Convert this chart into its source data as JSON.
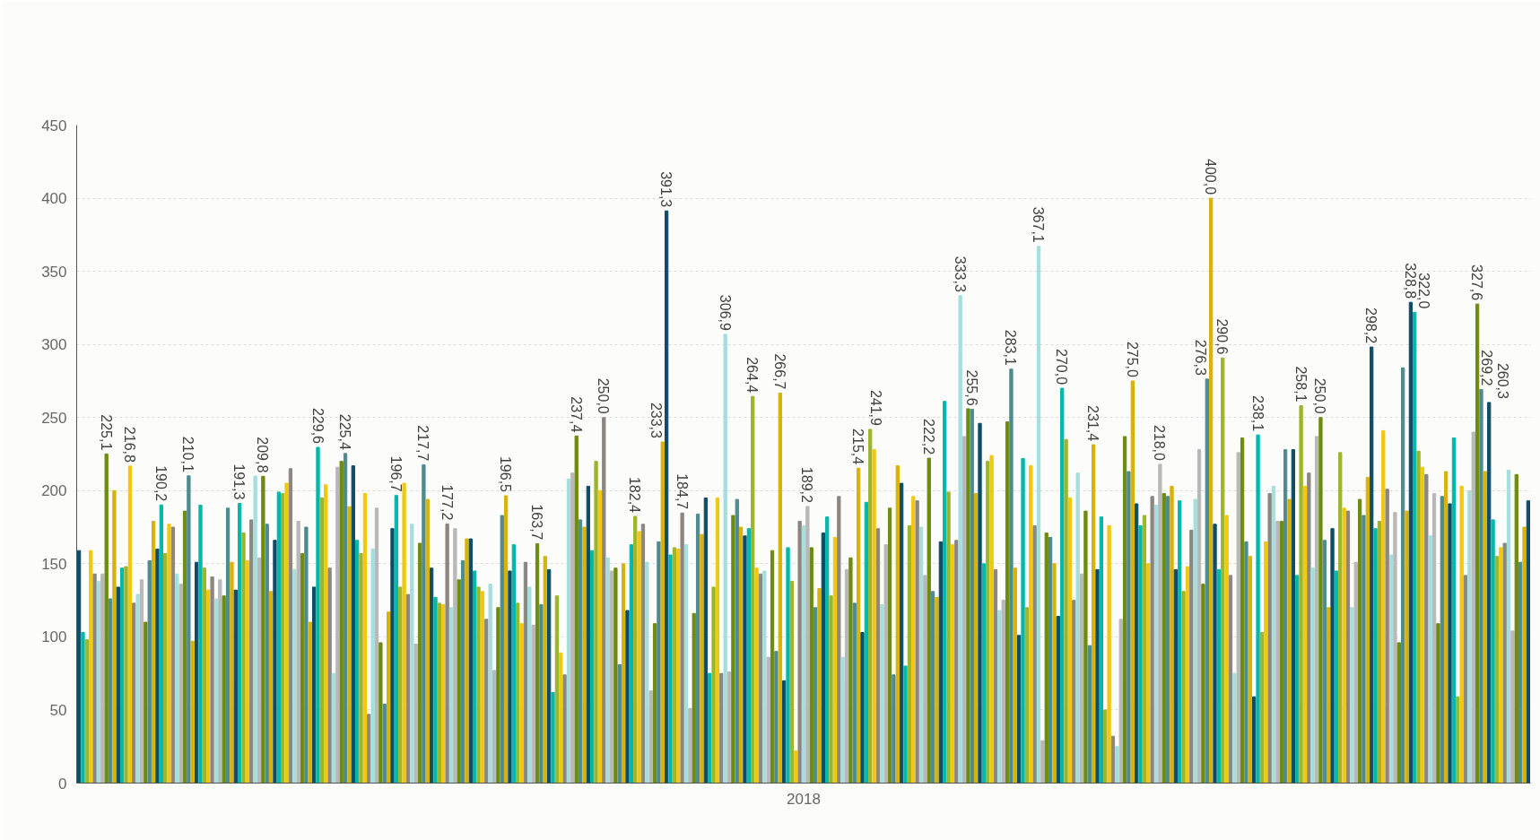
{
  "chart_data": {
    "type": "bar",
    "categories": [
      "2018"
    ],
    "ylim": [
      0,
      450
    ],
    "yticks": [
      0,
      50,
      100,
      150,
      200,
      250,
      300,
      350,
      400,
      450
    ],
    "grid": "y",
    "series": [
      {
        "color": "#0d4d68",
        "values": [
          159
        ]
      },
      {
        "color": "#01b8aa",
        "values": [
          103
        ]
      },
      {
        "color": "#9cb52a",
        "values": [
          98
        ]
      },
      {
        "color": "#f2c80f",
        "values": [
          159
        ]
      },
      {
        "color": "#8c8680",
        "values": [
          143
        ]
      },
      {
        "color": "#a6dede",
        "values": [
          138
        ]
      },
      {
        "color": "#b8b8b8",
        "values": [
          143
        ]
      },
      {
        "color": "#6d8b0f",
        "values": [
          225.1
        ],
        "value_labels": [
          "225,1"
        ]
      },
      {
        "color": "#4e8b8f",
        "values": [
          126
        ]
      },
      {
        "color": "#d9b208",
        "values": [
          200
        ]
      },
      {
        "color": "#0d4d68",
        "values": [
          134
        ]
      },
      {
        "color": "#01b8aa",
        "values": [
          147
        ]
      },
      {
        "color": "#9cb52a",
        "values": [
          148
        ]
      },
      {
        "color": "#f2c80f",
        "values": [
          216.8
        ],
        "value_labels": [
          "216,8"
        ]
      },
      {
        "color": "#8c8680",
        "values": [
          123
        ]
      },
      {
        "color": "#a6dede",
        "values": [
          129
        ]
      },
      {
        "color": "#b8b8b8",
        "values": [
          139
        ]
      },
      {
        "color": "#6d8b0f",
        "values": [
          110
        ]
      },
      {
        "color": "#4e8b8f",
        "values": [
          152
        ]
      },
      {
        "color": "#d9b208",
        "values": [
          179
        ]
      },
      {
        "color": "#0d4d68",
        "values": [
          160
        ]
      },
      {
        "color": "#01b8aa",
        "values": [
          190.2
        ],
        "value_labels": [
          "190,2"
        ]
      },
      {
        "color": "#9cb52a",
        "values": [
          157
        ]
      },
      {
        "color": "#f2c80f",
        "values": [
          177
        ]
      },
      {
        "color": "#8c8680",
        "values": [
          175
        ]
      },
      {
        "color": "#a6dede",
        "values": [
          143
        ]
      },
      {
        "color": "#b8b8b8",
        "values": [
          136
        ]
      },
      {
        "color": "#6d8b0f",
        "values": [
          186
        ]
      },
      {
        "color": "#4e8b8f",
        "values": [
          210.1
        ],
        "value_labels": [
          "210,1"
        ]
      },
      {
        "color": "#d9b208",
        "values": [
          97
        ]
      },
      {
        "color": "#0d4d68",
        "values": [
          151
        ]
      },
      {
        "color": "#01b8aa",
        "values": [
          190
        ]
      },
      {
        "color": "#9cb52a",
        "values": [
          147
        ]
      },
      {
        "color": "#f2c80f",
        "values": [
          132
        ]
      },
      {
        "color": "#8c8680",
        "values": [
          141
        ]
      },
      {
        "color": "#a6dede",
        "values": [
          126
        ]
      },
      {
        "color": "#b8b8b8",
        "values": [
          139
        ]
      },
      {
        "color": "#6d8b0f",
        "values": [
          128
        ]
      },
      {
        "color": "#4e8b8f",
        "values": [
          188
        ]
      },
      {
        "color": "#d9b208",
        "values": [
          151
        ]
      },
      {
        "color": "#0d4d68",
        "values": [
          132
        ]
      },
      {
        "color": "#01b8aa",
        "values": [
          191.3
        ],
        "value_labels": [
          "191,3"
        ]
      },
      {
        "color": "#9cb52a",
        "values": [
          171
        ]
      },
      {
        "color": "#f2c80f",
        "values": [
          152
        ]
      },
      {
        "color": "#8c8680",
        "values": [
          180
        ]
      },
      {
        "color": "#a6dede",
        "values": [
          210
        ]
      },
      {
        "color": "#b8b8b8",
        "values": [
          154
        ]
      },
      {
        "color": "#6d8b0f",
        "values": [
          209.8
        ],
        "value_labels": [
          "209,8"
        ]
      },
      {
        "color": "#4e8b8f",
        "values": [
          177
        ]
      },
      {
        "color": "#d9b208",
        "values": [
          131
        ]
      },
      {
        "color": "#0d4d68",
        "values": [
          166
        ]
      },
      {
        "color": "#01b8aa",
        "values": [
          199
        ]
      },
      {
        "color": "#9cb52a",
        "values": [
          198
        ]
      },
      {
        "color": "#f2c80f",
        "values": [
          205
        ]
      },
      {
        "color": "#8c8680",
        "values": [
          215
        ]
      },
      {
        "color": "#a6dede",
        "values": [
          146
        ]
      },
      {
        "color": "#b8b8b8",
        "values": [
          179
        ]
      },
      {
        "color": "#6d8b0f",
        "values": [
          157
        ]
      },
      {
        "color": "#4e8b8f",
        "values": [
          175
        ]
      },
      {
        "color": "#d9b208",
        "values": [
          110
        ]
      },
      {
        "color": "#0d4d68",
        "values": [
          134
        ]
      },
      {
        "color": "#01b8aa",
        "values": [
          229.6
        ],
        "value_labels": [
          "229,6"
        ]
      },
      {
        "color": "#9cb52a",
        "values": [
          195
        ]
      },
      {
        "color": "#f2c80f",
        "values": [
          204
        ]
      },
      {
        "color": "#8c8680",
        "values": [
          147
        ]
      },
      {
        "color": "#a6dede",
        "values": [
          75
        ]
      },
      {
        "color": "#b8b8b8",
        "values": [
          216
        ]
      },
      {
        "color": "#6d8b0f",
        "values": [
          220
        ]
      },
      {
        "color": "#4e8b8f",
        "values": [
          225.4
        ],
        "value_labels": [
          "225,4"
        ]
      },
      {
        "color": "#d9b208",
        "values": [
          189
        ]
      },
      {
        "color": "#0d4d68",
        "values": [
          217
        ]
      },
      {
        "color": "#01b8aa",
        "values": [
          166
        ]
      },
      {
        "color": "#9cb52a",
        "values": [
          157
        ]
      },
      {
        "color": "#f2c80f",
        "values": [
          198
        ]
      },
      {
        "color": "#8c8680",
        "values": [
          47
        ]
      },
      {
        "color": "#a6dede",
        "values": [
          160
        ]
      },
      {
        "color": "#b8b8b8",
        "values": [
          188
        ]
      },
      {
        "color": "#6d8b0f",
        "values": [
          96
        ]
      },
      {
        "color": "#4e8b8f",
        "values": [
          54
        ]
      },
      {
        "color": "#d9b208",
        "values": [
          117
        ]
      },
      {
        "color": "#0d4d68",
        "values": [
          174
        ]
      },
      {
        "color": "#01b8aa",
        "values": [
          196.7
        ],
        "value_labels": [
          "196,7"
        ]
      },
      {
        "color": "#9cb52a",
        "values": [
          134
        ]
      },
      {
        "color": "#f2c80f",
        "values": [
          205
        ]
      },
      {
        "color": "#8c8680",
        "values": [
          129
        ]
      },
      {
        "color": "#a6dede",
        "values": [
          177
        ]
      },
      {
        "color": "#b8b8b8",
        "values": [
          95
        ]
      },
      {
        "color": "#6d8b0f",
        "values": [
          164
        ]
      },
      {
        "color": "#4e8b8f",
        "values": [
          217.7
        ],
        "value_labels": [
          "217,7"
        ]
      },
      {
        "color": "#d9b208",
        "values": [
          194
        ]
      },
      {
        "color": "#0d4d68",
        "values": [
          147
        ]
      },
      {
        "color": "#01b8aa",
        "values": [
          127
        ]
      },
      {
        "color": "#9cb52a",
        "values": [
          123
        ]
      },
      {
        "color": "#f2c80f",
        "values": [
          122
        ]
      },
      {
        "color": "#8c8680",
        "values": [
          177.2
        ],
        "value_labels": [
          "177,2"
        ]
      },
      {
        "color": "#a6dede",
        "values": [
          120
        ]
      },
      {
        "color": "#b8b8b8",
        "values": [
          174
        ]
      },
      {
        "color": "#6d8b0f",
        "values": [
          139
        ]
      },
      {
        "color": "#4e8b8f",
        "values": [
          152
        ]
      },
      {
        "color": "#d9b208",
        "values": [
          167
        ]
      },
      {
        "color": "#0d4d68",
        "values": [
          167
        ]
      },
      {
        "color": "#01b8aa",
        "values": [
          145
        ]
      },
      {
        "color": "#9cb52a",
        "values": [
          134
        ]
      },
      {
        "color": "#f2c80f",
        "values": [
          131
        ]
      },
      {
        "color": "#8c8680",
        "values": [
          112
        ]
      },
      {
        "color": "#a6dede",
        "values": [
          136
        ]
      },
      {
        "color": "#b8b8b8",
        "values": [
          77
        ]
      },
      {
        "color": "#6d8b0f",
        "values": [
          120
        ]
      },
      {
        "color": "#4e8b8f",
        "values": [
          183
        ]
      },
      {
        "color": "#d9b208",
        "values": [
          196.5
        ],
        "value_labels": [
          "196,5"
        ]
      },
      {
        "color": "#0d4d68",
        "values": [
          145
        ]
      },
      {
        "color": "#01b8aa",
        "values": [
          163
        ]
      },
      {
        "color": "#9cb52a",
        "values": [
          123
        ]
      },
      {
        "color": "#f2c80f",
        "values": [
          109
        ]
      },
      {
        "color": "#8c8680",
        "values": [
          151
        ]
      },
      {
        "color": "#a6dede",
        "values": [
          134
        ]
      },
      {
        "color": "#b8b8b8",
        "values": [
          108
        ]
      },
      {
        "color": "#6d8b0f",
        "values": [
          163.7
        ],
        "value_labels": [
          "163,7"
        ]
      },
      {
        "color": "#4e8b8f",
        "values": [
          122
        ]
      },
      {
        "color": "#d9b208",
        "values": [
          155
        ]
      },
      {
        "color": "#0d4d68",
        "values": [
          146
        ]
      },
      {
        "color": "#01b8aa",
        "values": [
          62
        ]
      },
      {
        "color": "#9cb52a",
        "values": [
          128
        ]
      },
      {
        "color": "#f2c80f",
        "values": [
          89
        ]
      },
      {
        "color": "#8c8680",
        "values": [
          74
        ]
      },
      {
        "color": "#a6dede",
        "values": [
          208
        ]
      },
      {
        "color": "#b8b8b8",
        "values": [
          212
        ]
      },
      {
        "color": "#6d8b0f",
        "values": [
          237.4
        ],
        "value_labels": [
          "237,4"
        ]
      },
      {
        "color": "#4e8b8f",
        "values": [
          180
        ]
      },
      {
        "color": "#d9b208",
        "values": [
          175
        ]
      },
      {
        "color": "#0d4d68",
        "values": [
          203
        ]
      },
      {
        "color": "#01b8aa",
        "values": [
          159
        ]
      },
      {
        "color": "#9cb52a",
        "values": [
          220
        ]
      },
      {
        "color": "#f2c80f",
        "values": [
          200
        ]
      },
      {
        "color": "#8c8680",
        "values": [
          250.0
        ],
        "value_labels": [
          "250,0"
        ]
      },
      {
        "color": "#a6dede",
        "values": [
          154
        ]
      },
      {
        "color": "#b8b8b8",
        "values": [
          145
        ]
      },
      {
        "color": "#6d8b0f",
        "values": [
          147
        ]
      },
      {
        "color": "#4e8b8f",
        "values": [
          81
        ]
      },
      {
        "color": "#d9b208",
        "values": [
          150
        ]
      },
      {
        "color": "#0d4d68",
        "values": [
          118
        ]
      },
      {
        "color": "#01b8aa",
        "values": [
          163
        ]
      },
      {
        "color": "#9cb52a",
        "values": [
          182.4
        ],
        "value_labels": [
          "182,4"
        ]
      },
      {
        "color": "#f2c80f",
        "values": [
          172
        ]
      },
      {
        "color": "#8c8680",
        "values": [
          177
        ]
      },
      {
        "color": "#a6dede",
        "values": [
          151
        ]
      },
      {
        "color": "#b8b8b8",
        "values": [
          63
        ]
      },
      {
        "color": "#6d8b0f",
        "values": [
          109
        ]
      },
      {
        "color": "#4e8b8f",
        "values": [
          165
        ]
      },
      {
        "color": "#d9b208",
        "values": [
          233.3
        ],
        "value_labels": [
          "233,3"
        ]
      },
      {
        "color": "#0d4d68",
        "values": [
          391.3
        ],
        "value_labels": [
          "391,3"
        ]
      },
      {
        "color": "#01b8aa",
        "values": [
          156
        ]
      },
      {
        "color": "#9cb52a",
        "values": [
          161
        ]
      },
      {
        "color": "#f2c80f",
        "values": [
          160
        ]
      },
      {
        "color": "#8c8680",
        "values": [
          184.7
        ],
        "value_labels": [
          "184,7"
        ]
      },
      {
        "color": "#a6dede",
        "values": [
          163
        ]
      },
      {
        "color": "#b8b8b8",
        "values": [
          51
        ]
      },
      {
        "color": "#6d8b0f",
        "values": [
          116
        ]
      },
      {
        "color": "#4e8b8f",
        "values": [
          184
        ]
      },
      {
        "color": "#d9b208",
        "values": [
          170
        ]
      },
      {
        "color": "#0d4d68",
        "values": [
          195
        ]
      },
      {
        "color": "#01b8aa",
        "values": [
          75
        ]
      },
      {
        "color": "#9cb52a",
        "values": [
          134
        ]
      },
      {
        "color": "#f2c80f",
        "values": [
          195
        ]
      },
      {
        "color": "#8c8680",
        "values": [
          75
        ]
      },
      {
        "color": "#a6dede",
        "values": [
          306.9
        ],
        "value_labels": [
          "306,9"
        ]
      },
      {
        "color": "#b8b8b8",
        "values": [
          76
        ]
      },
      {
        "color": "#6d8b0f",
        "values": [
          183
        ]
      },
      {
        "color": "#4e8b8f",
        "values": [
          194
        ]
      },
      {
        "color": "#d9b208",
        "values": [
          175
        ]
      },
      {
        "color": "#0d4d68",
        "values": [
          169
        ]
      },
      {
        "color": "#01b8aa",
        "values": [
          174
        ]
      },
      {
        "color": "#9cb52a",
        "values": [
          264.4
        ],
        "value_labels": [
          "264,4"
        ]
      },
      {
        "color": "#f2c80f",
        "values": [
          147
        ]
      },
      {
        "color": "#8c8680",
        "values": [
          143
        ]
      },
      {
        "color": "#a6dede",
        "values": [
          145
        ]
      },
      {
        "color": "#b8b8b8",
        "values": [
          86
        ]
      },
      {
        "color": "#6d8b0f",
        "values": [
          159
        ]
      },
      {
        "color": "#4e8b8f",
        "values": [
          90
        ]
      },
      {
        "color": "#d9b208",
        "values": [
          266.7
        ],
        "value_labels": [
          "266,7"
        ]
      },
      {
        "color": "#0d4d68",
        "values": [
          70
        ]
      },
      {
        "color": "#01b8aa",
        "values": [
          161
        ]
      },
      {
        "color": "#9cb52a",
        "values": [
          138
        ]
      },
      {
        "color": "#f2c80f",
        "values": [
          22
        ]
      },
      {
        "color": "#8c8680",
        "values": [
          179
        ]
      },
      {
        "color": "#a6dede",
        "values": [
          176
        ]
      },
      {
        "color": "#b8b8b8",
        "values": [
          189.2
        ],
        "value_labels": [
          "189,2"
        ]
      },
      {
        "color": "#6d8b0f",
        "values": [
          161
        ]
      },
      {
        "color": "#4e8b8f",
        "values": [
          120
        ]
      },
      {
        "color": "#d9b208",
        "values": [
          133
        ]
      },
      {
        "color": "#0d4d68",
        "values": [
          171
        ]
      },
      {
        "color": "#01b8aa",
        "values": [
          182
        ]
      },
      {
        "color": "#9cb52a",
        "values": [
          128
        ]
      },
      {
        "color": "#f2c80f",
        "values": [
          168
        ]
      },
      {
        "color": "#8c8680",
        "values": [
          196
        ]
      },
      {
        "color": "#a6dede",
        "values": [
          86
        ]
      },
      {
        "color": "#b8b8b8",
        "values": [
          146
        ]
      },
      {
        "color": "#6d8b0f",
        "values": [
          154
        ]
      },
      {
        "color": "#4e8b8f",
        "values": [
          123
        ]
      },
      {
        "color": "#d9b208",
        "values": [
          215.4
        ],
        "value_labels": [
          "215,4"
        ]
      },
      {
        "color": "#0d4d68",
        "values": [
          103
        ]
      },
      {
        "color": "#01b8aa",
        "values": [
          192
        ]
      },
      {
        "color": "#9cb52a",
        "values": [
          241.9
        ],
        "value_labels": [
          "241,9"
        ]
      },
      {
        "color": "#f2c80f",
        "values": [
          228
        ]
      },
      {
        "color": "#8c8680",
        "values": [
          174
        ]
      },
      {
        "color": "#a6dede",
        "values": [
          122
        ]
      },
      {
        "color": "#b8b8b8",
        "values": [
          163
        ]
      },
      {
        "color": "#6d8b0f",
        "values": [
          188
        ]
      },
      {
        "color": "#4e8b8f",
        "values": [
          74
        ]
      },
      {
        "color": "#d9b208",
        "values": [
          217
        ]
      },
      {
        "color": "#0d4d68",
        "values": [
          205
        ]
      },
      {
        "color": "#01b8aa",
        "values": [
          80
        ]
      },
      {
        "color": "#9cb52a",
        "values": [
          176
        ]
      },
      {
        "color": "#f2c80f",
        "values": [
          196
        ]
      },
      {
        "color": "#8c8680",
        "values": [
          193
        ]
      },
      {
        "color": "#a6dede",
        "values": [
          175
        ]
      },
      {
        "color": "#b8b8b8",
        "values": [
          142
        ]
      },
      {
        "color": "#6d8b0f",
        "values": [
          222.2
        ],
        "value_labels": [
          "222,2"
        ]
      },
      {
        "color": "#4e8b8f",
        "values": [
          131
        ]
      },
      {
        "color": "#d9b208",
        "values": [
          127
        ]
      },
      {
        "color": "#0d4d68",
        "values": [
          165
        ]
      },
      {
        "color": "#01b8aa",
        "values": [
          261
        ]
      },
      {
        "color": "#9cb52a",
        "values": [
          199
        ]
      },
      {
        "color": "#f2c80f",
        "values": [
          163
        ]
      },
      {
        "color": "#8c8680",
        "values": [
          166
        ]
      },
      {
        "color": "#a6dede",
        "values": [
          333.3
        ],
        "value_labels": [
          "333,3"
        ]
      },
      {
        "color": "#b8b8b8",
        "values": [
          237
        ]
      },
      {
        "color": "#6d8b0f",
        "values": [
          256
        ]
      },
      {
        "color": "#4e8b8f",
        "values": [
          255.6
        ],
        "value_labels": [
          "255,6"
        ]
      },
      {
        "color": "#d9b208",
        "values": [
          198
        ]
      },
      {
        "color": "#0d4d68",
        "values": [
          246
        ]
      },
      {
        "color": "#01b8aa",
        "values": [
          150
        ]
      },
      {
        "color": "#9cb52a",
        "values": [
          220
        ]
      },
      {
        "color": "#f2c80f",
        "values": [
          224
        ]
      },
      {
        "color": "#8c8680",
        "values": [
          146
        ]
      },
      {
        "color": "#a6dede",
        "values": [
          118
        ]
      },
      {
        "color": "#b8b8b8",
        "values": [
          125
        ]
      },
      {
        "color": "#6d8b0f",
        "values": [
          247
        ]
      },
      {
        "color": "#4e8b8f",
        "values": [
          283.1
        ],
        "value_labels": [
          "283,1"
        ]
      },
      {
        "color": "#d9b208",
        "values": [
          147
        ]
      },
      {
        "color": "#0d4d68",
        "values": [
          101
        ]
      },
      {
        "color": "#01b8aa",
        "values": [
          222
        ]
      },
      {
        "color": "#9cb52a",
        "values": [
          120
        ]
      },
      {
        "color": "#f2c80f",
        "values": [
          217
        ]
      },
      {
        "color": "#8c8680",
        "values": [
          176
        ]
      },
      {
        "color": "#a6dede",
        "values": [
          367.1
        ],
        "value_labels": [
          "367,1"
        ]
      },
      {
        "color": "#b8b8b8",
        "values": [
          29
        ]
      },
      {
        "color": "#6d8b0f",
        "values": [
          171
        ]
      },
      {
        "color": "#4e8b8f",
        "values": [
          168
        ]
      },
      {
        "color": "#d9b208",
        "values": [
          150
        ]
      },
      {
        "color": "#0d4d68",
        "values": [
          114
        ]
      },
      {
        "color": "#01b8aa",
        "values": [
          270.0
        ],
        "value_labels": [
          "270,0"
        ]
      },
      {
        "color": "#9cb52a",
        "values": [
          235
        ]
      },
      {
        "color": "#f2c80f",
        "values": [
          195
        ]
      },
      {
        "color": "#8c8680",
        "values": [
          125
        ]
      },
      {
        "color": "#a6dede",
        "values": [
          212
        ]
      },
      {
        "color": "#b8b8b8",
        "values": [
          143
        ]
      },
      {
        "color": "#6d8b0f",
        "values": [
          186
        ]
      },
      {
        "color": "#4e8b8f",
        "values": [
          94
        ]
      },
      {
        "color": "#d9b208",
        "values": [
          231.4
        ],
        "value_labels": [
          "231,4"
        ]
      },
      {
        "color": "#0d4d68",
        "values": [
          146
        ]
      },
      {
        "color": "#01b8aa",
        "values": [
          182
        ]
      },
      {
        "color": "#9cb52a",
        "values": [
          50
        ]
      },
      {
        "color": "#f2c80f",
        "values": [
          176
        ]
      },
      {
        "color": "#8c8680",
        "values": [
          32
        ]
      },
      {
        "color": "#a6dede",
        "values": [
          25
        ]
      },
      {
        "color": "#b8b8b8",
        "values": [
          112
        ]
      },
      {
        "color": "#6d8b0f",
        "values": [
          237
        ]
      },
      {
        "color": "#4e8b8f",
        "values": [
          213
        ]
      },
      {
        "color": "#d9b208",
        "values": [
          275.0
        ],
        "value_labels": [
          "275,0"
        ]
      },
      {
        "color": "#0d4d68",
        "values": [
          191
        ]
      },
      {
        "color": "#01b8aa",
        "values": [
          176
        ]
      },
      {
        "color": "#9cb52a",
        "values": [
          183
        ]
      },
      {
        "color": "#f2c80f",
        "values": [
          150
        ]
      },
      {
        "color": "#8c8680",
        "values": [
          196
        ]
      },
      {
        "color": "#a6dede",
        "values": [
          190
        ]
      },
      {
        "color": "#b8b8b8",
        "values": [
          218.0
        ],
        "value_labels": [
          "218,0"
        ]
      },
      {
        "color": "#6d8b0f",
        "values": [
          198
        ]
      },
      {
        "color": "#4e8b8f",
        "values": [
          196
        ]
      },
      {
        "color": "#d9b208",
        "values": [
          203
        ]
      },
      {
        "color": "#0d4d68",
        "values": [
          146
        ]
      },
      {
        "color": "#01b8aa",
        "values": [
          193
        ]
      },
      {
        "color": "#9cb52a",
        "values": [
          131
        ]
      },
      {
        "color": "#f2c80f",
        "values": [
          148
        ]
      },
      {
        "color": "#8c8680",
        "values": [
          173
        ]
      },
      {
        "color": "#a6dede",
        "values": [
          194
        ]
      },
      {
        "color": "#b8b8b8",
        "values": [
          228
        ]
      },
      {
        "color": "#6d8b0f",
        "values": [
          136
        ]
      },
      {
        "color": "#4e8b8f",
        "values": [
          276.3
        ],
        "value_labels": [
          "276,3"
        ]
      },
      {
        "color": "#d9b208",
        "values": [
          400.0
        ],
        "value_labels": [
          "400,0"
        ]
      },
      {
        "color": "#0d4d68",
        "values": [
          177
        ]
      },
      {
        "color": "#01b8aa",
        "values": [
          146
        ]
      },
      {
        "color": "#9cb52a",
        "values": [
          290.6
        ],
        "value_labels": [
          "290,6"
        ]
      },
      {
        "color": "#f2c80f",
        "values": [
          183
        ]
      },
      {
        "color": "#8c8680",
        "values": [
          142
        ]
      },
      {
        "color": "#a6dede",
        "values": [
          75
        ]
      },
      {
        "color": "#b8b8b8",
        "values": [
          226
        ]
      },
      {
        "color": "#6d8b0f",
        "values": [
          236
        ]
      },
      {
        "color": "#4e8b8f",
        "values": [
          165
        ]
      },
      {
        "color": "#d9b208",
        "values": [
          155
        ]
      },
      {
        "color": "#0d4d68",
        "values": [
          59
        ]
      },
      {
        "color": "#01b8aa",
        "values": [
          238.1
        ],
        "value_labels": [
          "238,1"
        ]
      },
      {
        "color": "#9cb52a",
        "values": [
          103
        ]
      },
      {
        "color": "#f2c80f",
        "values": [
          165
        ]
      },
      {
        "color": "#8c8680",
        "values": [
          198
        ]
      },
      {
        "color": "#a6dede",
        "values": [
          203
        ]
      },
      {
        "color": "#b8b8b8",
        "values": [
          179
        ]
      },
      {
        "color": "#6d8b0f",
        "values": [
          179
        ]
      },
      {
        "color": "#4e8b8f",
        "values": [
          228
        ]
      },
      {
        "color": "#d9b208",
        "values": [
          194
        ]
      },
      {
        "color": "#0d4d68",
        "values": [
          228
        ]
      },
      {
        "color": "#01b8aa",
        "values": [
          142
        ]
      },
      {
        "color": "#9cb52a",
        "values": [
          258.1
        ],
        "value_labels": [
          "258,1"
        ]
      },
      {
        "color": "#f2c80f",
        "values": [
          203
        ]
      },
      {
        "color": "#8c8680",
        "values": [
          212
        ]
      },
      {
        "color": "#a6dede",
        "values": [
          147
        ]
      },
      {
        "color": "#b8b8b8",
        "values": [
          237
        ]
      },
      {
        "color": "#6d8b0f",
        "values": [
          250.0
        ],
        "value_labels": [
          "250,0"
        ]
      },
      {
        "color": "#4e8b8f",
        "values": [
          166
        ]
      },
      {
        "color": "#d9b208",
        "values": [
          120
        ]
      },
      {
        "color": "#0d4d68",
        "values": [
          174
        ]
      },
      {
        "color": "#01b8aa",
        "values": [
          145
        ]
      },
      {
        "color": "#9cb52a",
        "values": [
          226
        ]
      },
      {
        "color": "#f2c80f",
        "values": [
          188
        ]
      },
      {
        "color": "#8c8680",
        "values": [
          186
        ]
      },
      {
        "color": "#a6dede",
        "values": [
          120
        ]
      },
      {
        "color": "#b8b8b8",
        "values": [
          151
        ]
      },
      {
        "color": "#6d8b0f",
        "values": [
          194
        ]
      },
      {
        "color": "#4e8b8f",
        "values": [
          183
        ]
      },
      {
        "color": "#d9b208",
        "values": [
          209
        ]
      },
      {
        "color": "#0d4d68",
        "values": [
          298.2
        ],
        "value_labels": [
          "298,2"
        ]
      },
      {
        "color": "#01b8aa",
        "values": [
          174
        ]
      },
      {
        "color": "#9cb52a",
        "values": [
          179
        ]
      },
      {
        "color": "#f2c80f",
        "values": [
          241
        ]
      },
      {
        "color": "#8c8680",
        "values": [
          201
        ]
      },
      {
        "color": "#a6dede",
        "values": [
          156
        ]
      },
      {
        "color": "#b8b8b8",
        "values": [
          185
        ]
      },
      {
        "color": "#6d8b0f",
        "values": [
          96
        ]
      },
      {
        "color": "#4e8b8f",
        "values": [
          284
        ]
      },
      {
        "color": "#d9b208",
        "values": [
          186
        ]
      },
      {
        "color": "#0d4d68",
        "values": [
          328.8
        ],
        "value_labels": [
          "328,8"
        ]
      },
      {
        "color": "#01b8aa",
        "values": [
          322.0
        ],
        "value_labels": [
          "322,0"
        ]
      },
      {
        "color": "#9cb52a",
        "values": [
          227
        ]
      },
      {
        "color": "#f2c80f",
        "values": [
          216
        ]
      },
      {
        "color": "#8c8680",
        "values": [
          211
        ]
      },
      {
        "color": "#a6dede",
        "values": [
          169
        ]
      },
      {
        "color": "#b8b8b8",
        "values": [
          198
        ]
      },
      {
        "color": "#6d8b0f",
        "values": [
          109
        ]
      },
      {
        "color": "#4e8b8f",
        "values": [
          196
        ]
      },
      {
        "color": "#d9b208",
        "values": [
          213
        ]
      },
      {
        "color": "#0d4d68",
        "values": [
          191
        ]
      },
      {
        "color": "#01b8aa",
        "values": [
          236
        ]
      },
      {
        "color": "#9cb52a",
        "values": [
          59
        ]
      },
      {
        "color": "#f2c80f",
        "values": [
          203
        ]
      },
      {
        "color": "#8c8680",
        "values": [
          142
        ]
      },
      {
        "color": "#a6dede",
        "values": [
          200
        ]
      },
      {
        "color": "#b8b8b8",
        "values": [
          240
        ]
      },
      {
        "color": "#6d8b0f",
        "values": [
          327.6
        ],
        "value_labels": [
          "327,6"
        ]
      },
      {
        "color": "#4e8b8f",
        "values": [
          269.2
        ],
        "value_labels": [
          "269,2"
        ]
      },
      {
        "color": "#d9b208",
        "values": [
          213
        ]
      },
      {
        "color": "#0d4d68",
        "values": [
          260.3
        ],
        "value_labels": [
          "260,3"
        ]
      },
      {
        "color": "#01b8aa",
        "values": [
          180
        ]
      },
      {
        "color": "#9cb52a",
        "values": [
          155
        ]
      },
      {
        "color": "#f2c80f",
        "values": [
          161
        ]
      },
      {
        "color": "#8c8680",
        "values": [
          164
        ]
      },
      {
        "color": "#a6dede",
        "values": [
          214
        ]
      },
      {
        "color": "#b8b8b8",
        "values": [
          104
        ]
      },
      {
        "color": "#6d8b0f",
        "values": [
          211
        ]
      },
      {
        "color": "#4e8b8f",
        "values": [
          151
        ]
      },
      {
        "color": "#d9b208",
        "values": [
          175
        ]
      },
      {
        "color": "#0d4d68",
        "values": [
          193
        ]
      }
    ]
  }
}
